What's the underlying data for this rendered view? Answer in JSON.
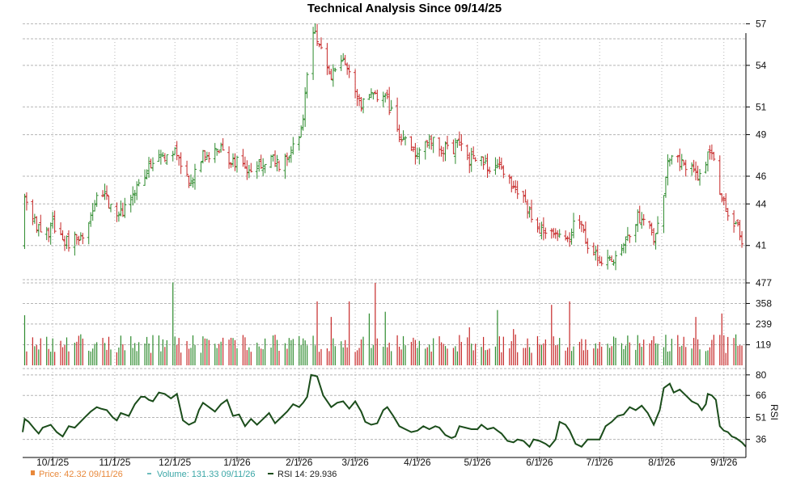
{
  "chart_data": {
    "type": "ohlc",
    "title": "Technical Analysis Since 09/14/25",
    "colors": {
      "up": "#2e8b2e",
      "down": "#c62828",
      "rsi": "#1b4d1b",
      "grid": "#b5b5b5",
      "axis": "#000000",
      "legend_price": "#e8883a",
      "legend_volume": "#3aa6a6"
    },
    "x_ticks": [
      {
        "label": "10/1/25",
        "day": 17
      },
      {
        "label": "11/1/25",
        "day": 48
      },
      {
        "label": "12/1/25",
        "day": 78
      },
      {
        "label": "1/1/26",
        "day": 109
      },
      {
        "label": "2/1/26",
        "day": 140
      },
      {
        "label": "3/1/26",
        "day": 168
      },
      {
        "label": "4/1/26",
        "day": 199
      },
      {
        "label": "5/1/26",
        "day": 229
      },
      {
        "label": "6/1/26",
        "day": 260
      },
      {
        "label": "7/1/26",
        "day": 290
      },
      {
        "label": "8/1/26",
        "day": 321
      },
      {
        "label": "9/1/26",
        "day": 352
      }
    ],
    "x_range": [
      2,
      363
    ],
    "price": {
      "y_ticks": [
        41,
        44,
        46,
        49,
        51,
        54,
        57
      ],
      "ylim": [
        39,
        57.2
      ],
      "points": [
        [
          3,
          44.5
        ],
        [
          9,
          42.2
        ],
        [
          14,
          41.8
        ],
        [
          17,
          42.6
        ],
        [
          21,
          41.4
        ],
        [
          26,
          41.2
        ],
        [
          31,
          41.6
        ],
        [
          36,
          43.4
        ],
        [
          41,
          44.9
        ],
        [
          46,
          43.8
        ],
        [
          51,
          43.2
        ],
        [
          55,
          44.4
        ],
        [
          60,
          45.2
        ],
        [
          65,
          46.8
        ],
        [
          70,
          47.8
        ],
        [
          74,
          47.2
        ],
        [
          78,
          48.2
        ],
        [
          82,
          46.3
        ],
        [
          86,
          45.8
        ],
        [
          91,
          47.4
        ],
        [
          96,
          47.6
        ],
        [
          101,
          48.0
        ],
        [
          106,
          47.2
        ],
        [
          111,
          46.8
        ],
        [
          116,
          46.6
        ],
        [
          121,
          47.0
        ],
        [
          126,
          47.4
        ],
        [
          131,
          46.8
        ],
        [
          136,
          47.8
        ],
        [
          141,
          49.2
        ],
        [
          143,
          51.8
        ],
        [
          145,
          55.0
        ],
        [
          147,
          56.6
        ],
        [
          150,
          55.4
        ],
        [
          155,
          53.2
        ],
        [
          160,
          54.1
        ],
        [
          165,
          53.8
        ],
        [
          168,
          52.4
        ],
        [
          171,
          51.0
        ],
        [
          176,
          51.8
        ],
        [
          181,
          52.0
        ],
        [
          186,
          50.8
        ],
        [
          190,
          48.8
        ],
        [
          195,
          48.0
        ],
        [
          200,
          47.6
        ],
        [
          205,
          48.8
        ],
        [
          210,
          47.8
        ],
        [
          215,
          48.0
        ],
        [
          220,
          48.2
        ],
        [
          225,
          47.2
        ],
        [
          230,
          47.0
        ],
        [
          235,
          46.8
        ],
        [
          240,
          47.0
        ],
        [
          245,
          45.8
        ],
        [
          250,
          44.6
        ],
        [
          255,
          43.6
        ],
        [
          260,
          42.2
        ],
        [
          265,
          41.8
        ],
        [
          270,
          41.4
        ],
        [
          275,
          41.6
        ],
        [
          278,
          43.2
        ],
        [
          281,
          42.5
        ],
        [
          284,
          41.1
        ],
        [
          288,
          40.2
        ],
        [
          292,
          39.7
        ],
        [
          296,
          39.8
        ],
        [
          300,
          40.8
        ],
        [
          305,
          42.0
        ],
        [
          309,
          43.2
        ],
        [
          313,
          42.5
        ],
        [
          317,
          41.6
        ],
        [
          321,
          44.0
        ],
        [
          324,
          47.0
        ],
        [
          327,
          47.4
        ],
        [
          331,
          47.0
        ],
        [
          336,
          46.4
        ],
        [
          340,
          46.0
        ],
        [
          343,
          47.2
        ],
        [
          345,
          48.0
        ],
        [
          347,
          46.8
        ],
        [
          349,
          45.2
        ],
        [
          351,
          44.2
        ],
        [
          353,
          43.8
        ],
        [
          356,
          42.6
        ],
        [
          359,
          42.2
        ],
        [
          362,
          41.0
        ]
      ],
      "seed": 20250914
    },
    "volume": {
      "y_ticks": [
        119,
        239,
        358,
        477
      ],
      "ylim": [
        0,
        477
      ],
      "spikes": [
        [
          3,
          290
        ],
        [
          40,
          260
        ],
        [
          77,
          480
        ],
        [
          90,
          160
        ],
        [
          149,
          370
        ],
        [
          156,
          280
        ],
        [
          165,
          370
        ],
        [
          175,
          300
        ],
        [
          178,
          477
        ],
        [
          183,
          310
        ],
        [
          225,
          220
        ],
        [
          239,
          320
        ],
        [
          247,
          210
        ],
        [
          266,
          350
        ],
        [
          275,
          370
        ],
        [
          279,
          340
        ],
        [
          314,
          300
        ],
        [
          321,
          250
        ],
        [
          338,
          280
        ],
        [
          349,
          320
        ],
        [
          351,
          300
        ]
      ]
    },
    "rsi": {
      "y_ticks": [
        36,
        51,
        66,
        80
      ],
      "ylim": [
        27,
        81
      ],
      "axis_title": "RSI",
      "points": [
        [
          2,
          41
        ],
        [
          3,
          50
        ],
        [
          5,
          48
        ],
        [
          8,
          43
        ],
        [
          10,
          40
        ],
        [
          12,
          44
        ],
        [
          16,
          46
        ],
        [
          19,
          41
        ],
        [
          22,
          38
        ],
        [
          25,
          45
        ],
        [
          28,
          44
        ],
        [
          33,
          51
        ],
        [
          36,
          55
        ],
        [
          39,
          58
        ],
        [
          41,
          57
        ],
        [
          44,
          56
        ],
        [
          47,
          51
        ],
        [
          49,
          49
        ],
        [
          51,
          54
        ],
        [
          55,
          52
        ],
        [
          58,
          60
        ],
        [
          61,
          65
        ],
        [
          63,
          65
        ],
        [
          65,
          63
        ],
        [
          67,
          62
        ],
        [
          70,
          68
        ],
        [
          73,
          67
        ],
        [
          76,
          64
        ],
        [
          79,
          67
        ],
        [
          82,
          49
        ],
        [
          85,
          46
        ],
        [
          88,
          48
        ],
        [
          90,
          56
        ],
        [
          92,
          61
        ],
        [
          95,
          58
        ],
        [
          98,
          55
        ],
        [
          101,
          60
        ],
        [
          104,
          63
        ],
        [
          107,
          52
        ],
        [
          110,
          53
        ],
        [
          113,
          45
        ],
        [
          116,
          50
        ],
        [
          119,
          46
        ],
        [
          122,
          50
        ],
        [
          125,
          54
        ],
        [
          128,
          47
        ],
        [
          131,
          51
        ],
        [
          134,
          55
        ],
        [
          137,
          60
        ],
        [
          140,
          58
        ],
        [
          142,
          61
        ],
        [
          144,
          65
        ],
        [
          146,
          80
        ],
        [
          149,
          79
        ],
        [
          152,
          66
        ],
        [
          156,
          58
        ],
        [
          159,
          61
        ],
        [
          162,
          62
        ],
        [
          165,
          57
        ],
        [
          168,
          62
        ],
        [
          171,
          55
        ],
        [
          173,
          48
        ],
        [
          176,
          46
        ],
        [
          179,
          47
        ],
        [
          182,
          56
        ],
        [
          184,
          58
        ],
        [
          187,
          52
        ],
        [
          190,
          45
        ],
        [
          193,
          43
        ],
        [
          196,
          41
        ],
        [
          199,
          42
        ],
        [
          202,
          45
        ],
        [
          205,
          43
        ],
        [
          208,
          45
        ],
        [
          210,
          44
        ],
        [
          213,
          39
        ],
        [
          216,
          37
        ],
        [
          218,
          38
        ],
        [
          220,
          45
        ],
        [
          223,
          44
        ],
        [
          226,
          43
        ],
        [
          229,
          43
        ],
        [
          231,
          46
        ],
        [
          234,
          43
        ],
        [
          237,
          44
        ],
        [
          239,
          42
        ],
        [
          241,
          40
        ],
        [
          244,
          35
        ],
        [
          247,
          34
        ],
        [
          249,
          36
        ],
        [
          252,
          35
        ],
        [
          255,
          31
        ],
        [
          257,
          36
        ],
        [
          260,
          35
        ],
        [
          263,
          33
        ],
        [
          265,
          31
        ],
        [
          268,
          36
        ],
        [
          270,
          48
        ],
        [
          273,
          46
        ],
        [
          275,
          42
        ],
        [
          278,
          33
        ],
        [
          281,
          31
        ],
        [
          284,
          36
        ],
        [
          287,
          36
        ],
        [
          290,
          36
        ],
        [
          293,
          45
        ],
        [
          296,
          48
        ],
        [
          299,
          52
        ],
        [
          302,
          53
        ],
        [
          305,
          58
        ],
        [
          308,
          56
        ],
        [
          311,
          59
        ],
        [
          314,
          54
        ],
        [
          317,
          46
        ],
        [
          320,
          56
        ],
        [
          322,
          71
        ],
        [
          325,
          74
        ],
        [
          327,
          68
        ],
        [
          330,
          70
        ],
        [
          333,
          66
        ],
        [
          336,
          62
        ],
        [
          339,
          60
        ],
        [
          341,
          56
        ],
        [
          343,
          60
        ],
        [
          344,
          67
        ],
        [
          346,
          66
        ],
        [
          348,
          63
        ],
        [
          350,
          45
        ],
        [
          352,
          42
        ],
        [
          354,
          41
        ],
        [
          356,
          38
        ],
        [
          358,
          37
        ],
        [
          361,
          34
        ],
        [
          363,
          31
        ]
      ]
    },
    "legend": [
      {
        "text": "Price: 42.32  09/11/26"
      },
      {
        "text": "Volume: 131.33  09/11/26"
      },
      {
        "text": "RSI 14: 29.936"
      }
    ]
  }
}
